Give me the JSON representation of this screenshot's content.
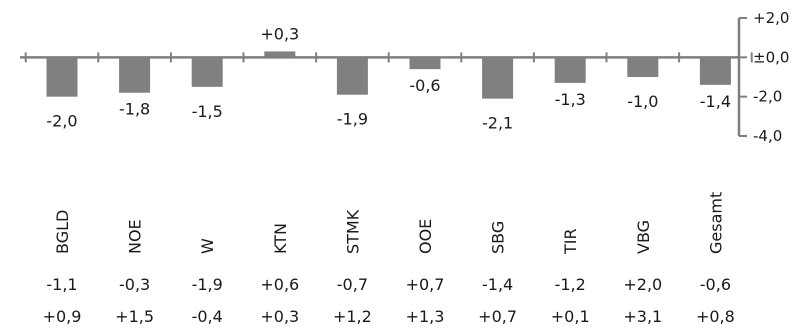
{
  "chart_data": {
    "type": "bar",
    "categories": [
      "BGLD",
      "NOE",
      "W",
      "KTN",
      "STMK",
      "OOE",
      "SBG",
      "TIR",
      "VBG",
      "Gesamt"
    ],
    "values": [
      -2.0,
      -1.8,
      -1.5,
      0.3,
      -1.9,
      -0.6,
      -2.1,
      -1.3,
      -1.0,
      -1.4
    ],
    "value_labels": [
      "-2,0",
      "-1,8",
      "-1,5",
      "+0,3",
      "-1,9",
      "-0,6",
      "-2,1",
      "-1,3",
      "-1,0",
      "-1,4"
    ],
    "ylim": [
      -4.0,
      2.0
    ],
    "yticks": [
      2.0,
      0.0,
      -2.0,
      -4.0
    ],
    "ytick_labels": [
      "+2,0",
      "±0,0",
      "-2,0",
      "-4,0"
    ],
    "y_axis_position": "right",
    "grid": false,
    "bar_color": "#808080",
    "axis_color": "#7f7f7f",
    "table_rows": [
      [
        "-1,1",
        "-0,3",
        "-1,9",
        "+0,6",
        "-0,7",
        "+0,7",
        "-1,4",
        "-1,2",
        "+2,0",
        "-0,6"
      ],
      [
        "+0,9",
        "+1,5",
        "-0,4",
        "+0,3",
        "+1,2",
        "+1,3",
        "+0,7",
        "+0,1",
        "+3,1",
        "+0,8"
      ]
    ]
  }
}
